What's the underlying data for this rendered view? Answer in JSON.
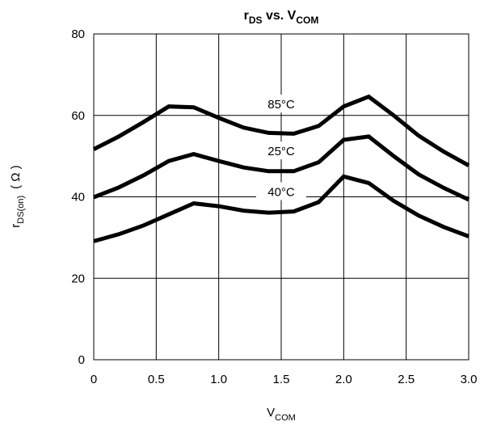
{
  "chart_data": {
    "type": "line",
    "title": {
      "main": "r",
      "sub1": "DS",
      "mid": " vs. V",
      "sub2": "COM"
    },
    "xlabel": {
      "main": "V",
      "sub": "COM"
    },
    "ylabel": {
      "main": "r",
      "sub": "DS(on)",
      "unit": "( Ω )"
    },
    "xlim": [
      0,
      3.0
    ],
    "ylim": [
      0,
      80
    ],
    "xticks": [
      {
        "value": 0,
        "label": "0"
      },
      {
        "value": 0.5,
        "label": "0.5"
      },
      {
        "value": 1.0,
        "label": "1.0"
      },
      {
        "value": 1.5,
        "label": "1.5"
      },
      {
        "value": 2.0,
        "label": "2.0"
      },
      {
        "value": 2.5,
        "label": "2.5"
      },
      {
        "value": 3.0,
        "label": "3.0"
      }
    ],
    "yticks": [
      {
        "value": 0,
        "label": "0"
      },
      {
        "value": 20,
        "label": "20"
      },
      {
        "value": 40,
        "label": "40"
      },
      {
        "value": 60,
        "label": "60"
      },
      {
        "value": 80,
        "label": "80"
      }
    ],
    "grid": true,
    "x": [
      0,
      0.2,
      0.4,
      0.6,
      0.8,
      1.0,
      1.2,
      1.4,
      1.6,
      1.8,
      2.0,
      2.2,
      2.4,
      2.6,
      2.8,
      3.0
    ],
    "series": [
      {
        "name": "85°C",
        "values": [
          51.7,
          54.8,
          58.4,
          62.2,
          62.0,
          59.4,
          57.0,
          55.7,
          55.5,
          57.4,
          62.2,
          64.6,
          60.0,
          55.0,
          51.1,
          47.7
        ],
        "label_at": [
          1.5,
          62.5
        ]
      },
      {
        "name": "25°C",
        "values": [
          39.9,
          42.3,
          45.3,
          48.8,
          50.5,
          48.8,
          47.2,
          46.3,
          46.3,
          48.5,
          54.0,
          54.8,
          50.0,
          45.5,
          42.2,
          39.3
        ],
        "label_at": [
          1.5,
          51.0
        ]
      },
      {
        "name": "40°C",
        "values": [
          29.1,
          30.8,
          33.0,
          35.7,
          38.4,
          37.7,
          36.6,
          36.1,
          36.4,
          38.7,
          45.0,
          43.4,
          39.0,
          35.4,
          32.6,
          30.3
        ],
        "label_at": [
          1.5,
          41.0
        ]
      }
    ]
  }
}
